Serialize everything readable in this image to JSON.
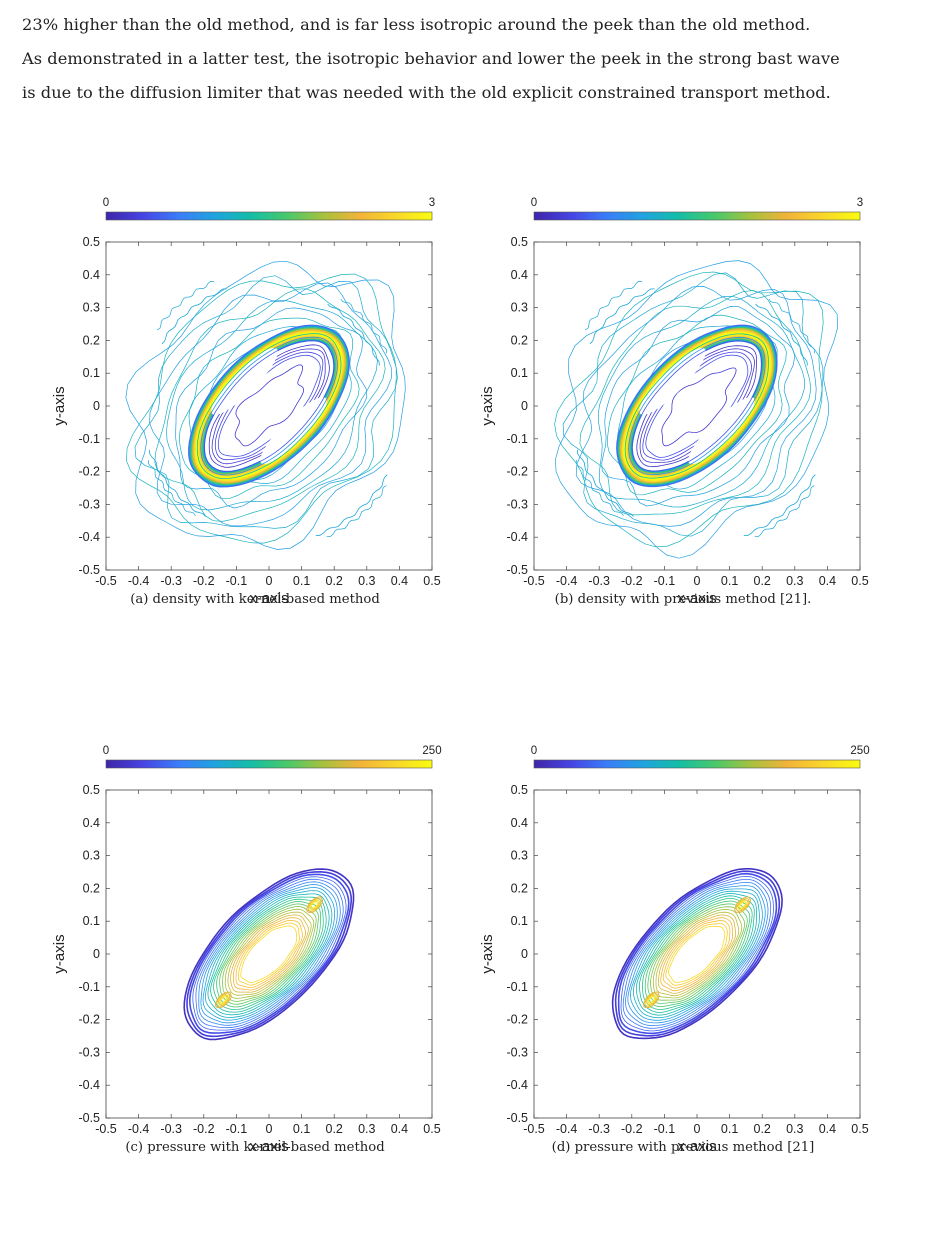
{
  "paragraph": {
    "lines": [
      "23% higher than the old method, and is far less isotropic around the peek than the old method.",
      "As demonstrated in a latter test, the isotropic behavior and lower the peek in the strong bast wave",
      "is due to the diffusion limiter that was needed with the old explicit constrained transport method."
    ]
  },
  "colormap": [
    "#3e26a8",
    "#4743e3",
    "#3a7cfa",
    "#1fa3df",
    "#13bea6",
    "#49c96a",
    "#a7c13d",
    "#f2b33a",
    "#f9d72a",
    "#f9fb0e"
  ],
  "axis_ticks": [
    "-0.5",
    "-0.4",
    "-0.3",
    "-0.2",
    "-0.1",
    "0",
    "0.1",
    "0.2",
    "0.3",
    "0.4",
    "0.5"
  ],
  "panels": [
    {
      "caption": "(a) density with kernel-based method",
      "xlabel": "x-axis",
      "ylabel": "y-axis",
      "colorbar": {
        "min": "0",
        "max": "3"
      },
      "kind": "density"
    },
    {
      "caption": "(b) density with previous method [21].",
      "xlabel": "x-axis",
      "ylabel": "y-axis",
      "colorbar": {
        "min": "0",
        "max": "3"
      },
      "kind": "density"
    },
    {
      "caption": "(c) pressure with kernel-based method",
      "xlabel": "x-axis",
      "ylabel": "y-axis",
      "colorbar": {
        "min": "0",
        "max": "250"
      },
      "kind": "pressure"
    },
    {
      "caption": "(d) pressure with previous method [21]",
      "xlabel": "x-axis",
      "ylabel": "y-axis",
      "colorbar": {
        "min": "0",
        "max": "250"
      },
      "kind": "pressure"
    }
  ],
  "chart_data": [
    {
      "type": "contour",
      "title": "(a) density with kernel-based method",
      "xlabel": "x-axis",
      "ylabel": "y-axis",
      "xlim": [
        -0.5,
        0.5
      ],
      "ylim": [
        -0.5,
        0.5
      ],
      "colorbar_range": [
        0,
        3
      ],
      "features": [
        {
          "name": "shell",
          "center": [
            0,
            0
          ],
          "orientation_deg": 45,
          "semi_major": 0.31,
          "semi_minor": 0.15
        },
        {
          "name": "density-peaks",
          "locations": [
            [
              0.15,
              0.17
            ],
            [
              -0.18,
              -0.17
            ]
          ],
          "level": 3
        }
      ]
    },
    {
      "type": "contour",
      "title": "(b) density with previous method [21].",
      "xlabel": "x-axis",
      "ylabel": "y-axis",
      "xlim": [
        -0.5,
        0.5
      ],
      "ylim": [
        -0.5,
        0.5
      ],
      "colorbar_range": [
        0,
        3
      ],
      "features": [
        {
          "name": "shell",
          "center": [
            0,
            0
          ],
          "orientation_deg": 45,
          "semi_major": 0.31,
          "semi_minor": 0.15
        },
        {
          "name": "density-peaks",
          "locations": [
            [
              0.15,
              0.17
            ],
            [
              -0.18,
              -0.17
            ]
          ],
          "level": 3
        }
      ]
    },
    {
      "type": "contour",
      "title": "(c) pressure with kernel-based method",
      "xlabel": "x-axis",
      "ylabel": "y-axis",
      "xlim": [
        -0.5,
        0.5
      ],
      "ylim": [
        -0.5,
        0.5
      ],
      "colorbar_range": [
        0,
        250
      ],
      "features": [
        {
          "name": "pressure-region",
          "center": [
            0,
            0
          ],
          "orientation_deg": 45,
          "semi_major": 0.3,
          "semi_minor": 0.14
        },
        {
          "name": "pressure-peaks",
          "locations": [
            [
              0.14,
              0.15
            ],
            [
              -0.14,
              -0.14
            ]
          ]
        }
      ]
    },
    {
      "type": "contour",
      "title": "(d) pressure with previous method [21]",
      "xlabel": "x-axis",
      "ylabel": "y-axis",
      "xlim": [
        -0.5,
        0.5
      ],
      "ylim": [
        -0.5,
        0.5
      ],
      "colorbar_range": [
        0,
        250
      ],
      "features": [
        {
          "name": "pressure-region",
          "center": [
            0,
            0
          ],
          "orientation_deg": 45,
          "semi_major": 0.3,
          "semi_minor": 0.14
        },
        {
          "name": "pressure-peaks",
          "locations": [
            [
              0.14,
              0.14
            ],
            [
              -0.14,
              -0.14
            ]
          ]
        }
      ]
    }
  ]
}
